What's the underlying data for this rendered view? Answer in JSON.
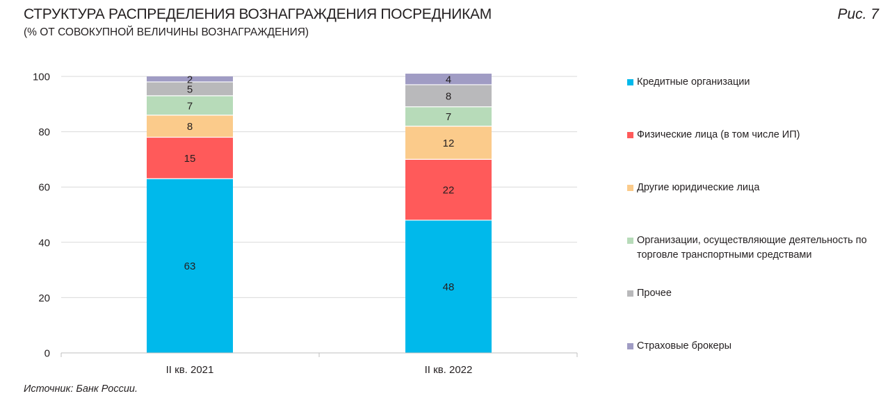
{
  "header": {
    "title": "СТРУКТУРА РАСПРЕДЕЛЕНИЯ ВОЗНАГРАЖДЕНИЯ ПОСРЕДНИКАМ",
    "subtitle": "(% ОТ СОВОКУПНОЙ ВЕЛИЧИНЫ ВОЗНАГРАЖДЕНИЯ)",
    "figure_label": "Рис. 7"
  },
  "footer": {
    "source": "Источник: Банк России."
  },
  "chart_data": {
    "type": "bar",
    "stacked": true,
    "categories": [
      "II кв. 2021",
      "II кв. 2022"
    ],
    "ylim": [
      0,
      100
    ],
    "yticks": [
      0,
      20,
      40,
      60,
      80,
      100
    ],
    "grid": true,
    "legend_position": "right",
    "series": [
      {
        "name": "Кредитные организации",
        "color": "#00b9eb",
        "values": [
          63,
          48
        ]
      },
      {
        "name": "Физические лица (в том числе ИП)",
        "color": "#ff5a5a",
        "values": [
          15,
          22
        ]
      },
      {
        "name": "Другие юридические лица",
        "color": "#fbcb8b",
        "values": [
          8,
          12
        ]
      },
      {
        "name": "Организации, осуществляющие деятельность по торговле транспортными средствами",
        "color": "#b7dbb9",
        "values": [
          7,
          7
        ]
      },
      {
        "name": "Прочее",
        "color": "#b9b9bb",
        "values": [
          5,
          8
        ]
      },
      {
        "name": "Страховые брокеры",
        "color": "#a09cc4",
        "values": [
          2,
          4
        ]
      }
    ]
  }
}
